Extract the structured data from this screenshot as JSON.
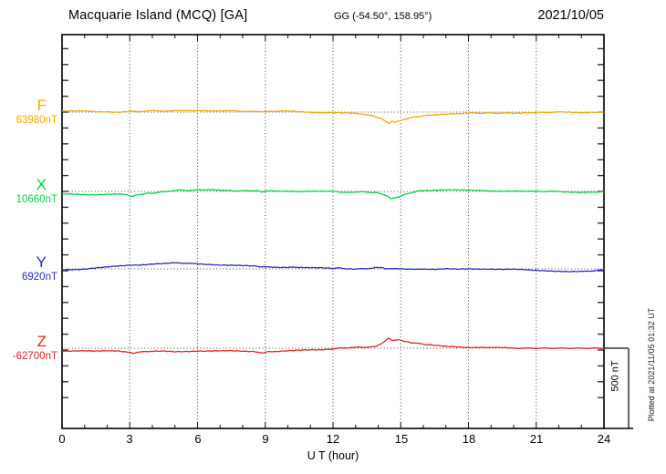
{
  "header": {
    "station_title": "Macquarie Island (MCQ)  [GA]",
    "gg_coords": "GG (-54.50°, 158.95°)",
    "date": "2021/10/05"
  },
  "plot": {
    "xaxis": {
      "label": "U T (hour)",
      "ticks": [
        "0",
        "3",
        "6",
        "9",
        "12",
        "15",
        "18",
        "21",
        "24"
      ]
    },
    "scale_bar": {
      "label": "500 nT"
    },
    "footnote": "Plotted at 2021/11/05 01:32 UT"
  },
  "chart_data": {
    "type": "line",
    "title": "Macquarie Island (MCQ) [GA] magnetogram",
    "date": "2021/10/05",
    "xlabel": "U T (hour)",
    "x_range": [
      0,
      24
    ],
    "x_gridlines_hours": [
      3,
      6,
      9,
      12,
      15,
      18,
      21
    ],
    "grid": "dotted-vertical-3h-and-dotted-baselines",
    "scale_bar_nT": 500,
    "minor_tick_nT": 100,
    "note": "points are [hour_UT, deviation_nT_from_baseline]",
    "series": [
      {
        "name": "F",
        "baseline_label": "63980nT",
        "baseline_nT": 63980,
        "color": "#F5A800",
        "points": [
          [
            0,
            6
          ],
          [
            0.5,
            6
          ],
          [
            1,
            6
          ],
          [
            1.5,
            3
          ],
          [
            2,
            3
          ],
          [
            2.5,
            0
          ],
          [
            3,
            6
          ],
          [
            3.3,
            3
          ],
          [
            4,
            9
          ],
          [
            4.5,
            6
          ],
          [
            5,
            11
          ],
          [
            5.5,
            11
          ],
          [
            6,
            9
          ],
          [
            6.5,
            6
          ],
          [
            7,
            6
          ],
          [
            7.5,
            9
          ],
          [
            8,
            6
          ],
          [
            8.5,
            6
          ],
          [
            8.9,
            0
          ],
          [
            9.2,
            6
          ],
          [
            9.6,
            6
          ],
          [
            10,
            6
          ],
          [
            10.5,
            3
          ],
          [
            11,
            0
          ],
          [
            11.5,
            -3
          ],
          [
            12,
            -3
          ],
          [
            12.5,
            -6
          ],
          [
            13,
            -9
          ],
          [
            13.5,
            -17
          ],
          [
            13.8,
            -23
          ],
          [
            14,
            -34
          ],
          [
            14.2,
            -46
          ],
          [
            14.35,
            -60
          ],
          [
            14.5,
            -69
          ],
          [
            14.6,
            -55
          ],
          [
            14.75,
            -63
          ],
          [
            14.9,
            -57
          ],
          [
            15,
            -52
          ],
          [
            15.2,
            -43
          ],
          [
            15.5,
            -34
          ],
          [
            15.8,
            -26
          ],
          [
            16,
            -23
          ],
          [
            16.5,
            -17
          ],
          [
            17,
            -11
          ],
          [
            17.5,
            -9
          ],
          [
            18,
            -6
          ],
          [
            19,
            -6
          ],
          [
            20,
            -6
          ],
          [
            20.5,
            -3
          ],
          [
            21,
            -3
          ],
          [
            22,
            0
          ],
          [
            22.5,
            0
          ],
          [
            23,
            -3
          ],
          [
            23.5,
            0
          ],
          [
            24,
            0
          ]
        ]
      },
      {
        "name": "X",
        "baseline_label": "10660nT",
        "baseline_nT": 10660,
        "color": "#00D545",
        "points": [
          [
            0,
            -17
          ],
          [
            0.5,
            -17
          ],
          [
            1,
            -20
          ],
          [
            1.5,
            -20
          ],
          [
            2,
            -17
          ],
          [
            2.5,
            -17
          ],
          [
            2.9,
            -23
          ],
          [
            3.1,
            -32
          ],
          [
            3.4,
            -20
          ],
          [
            3.7,
            -14
          ],
          [
            4,
            -11
          ],
          [
            4.3,
            -6
          ],
          [
            4.6,
            0
          ],
          [
            5,
            6
          ],
          [
            5.3,
            9
          ],
          [
            5.6,
            6
          ],
          [
            6,
            9
          ],
          [
            6.3,
            11
          ],
          [
            6.6,
            9
          ],
          [
            7,
            9
          ],
          [
            7.3,
            6
          ],
          [
            7.6,
            3
          ],
          [
            8,
            6
          ],
          [
            8.3,
            3
          ],
          [
            8.6,
            6
          ],
          [
            8.85,
            -3
          ],
          [
            9.1,
            3
          ],
          [
            9.5,
            0
          ],
          [
            10,
            3
          ],
          [
            10.5,
            0
          ],
          [
            11,
            3
          ],
          [
            11.5,
            0
          ],
          [
            12,
            0
          ],
          [
            12.4,
            -6
          ],
          [
            12.6,
            -9
          ],
          [
            12.9,
            -3
          ],
          [
            13.3,
            -3
          ],
          [
            13.6,
            -6
          ],
          [
            14,
            -6
          ],
          [
            14.2,
            -17
          ],
          [
            14.4,
            -29
          ],
          [
            14.55,
            -46
          ],
          [
            14.7,
            -40
          ],
          [
            14.9,
            -37
          ],
          [
            15.1,
            -23
          ],
          [
            15.4,
            -11
          ],
          [
            15.7,
            0
          ],
          [
            16,
            6
          ],
          [
            16.5,
            9
          ],
          [
            17,
            11
          ],
          [
            17.5,
            9
          ],
          [
            18,
            6
          ],
          [
            18.5,
            6
          ],
          [
            19,
            3
          ],
          [
            19.5,
            3
          ],
          [
            20,
            3
          ],
          [
            20.5,
            0
          ],
          [
            21,
            0
          ],
          [
            22,
            0
          ],
          [
            22.5,
            -3
          ],
          [
            23,
            -6
          ],
          [
            23.4,
            -6
          ],
          [
            23.7,
            -3
          ],
          [
            24,
            -3
          ]
        ]
      },
      {
        "name": "Y",
        "baseline_label": "6920nT",
        "baseline_nT": 6920,
        "color": "#2A2ACC",
        "points": [
          [
            0,
            -6
          ],
          [
            0.5,
            -3
          ],
          [
            1,
            0
          ],
          [
            1.5,
            6
          ],
          [
            2,
            11
          ],
          [
            2.5,
            17
          ],
          [
            3,
            23
          ],
          [
            3.5,
            26
          ],
          [
            4,
            32
          ],
          [
            4.5,
            34
          ],
          [
            5,
            37
          ],
          [
            5.3,
            37
          ],
          [
            5.6,
            34
          ],
          [
            6,
            32
          ],
          [
            6.5,
            29
          ],
          [
            7,
            26
          ],
          [
            7.5,
            23
          ],
          [
            8,
            20
          ],
          [
            8.5,
            17
          ],
          [
            8.85,
            11
          ],
          [
            9,
            14
          ],
          [
            9.5,
            11
          ],
          [
            10,
            11
          ],
          [
            10.3,
            9
          ],
          [
            10.6,
            11
          ],
          [
            11,
            6
          ],
          [
            11.5,
            6
          ],
          [
            12,
            3
          ],
          [
            12.2,
            6
          ],
          [
            12.5,
            3
          ],
          [
            13,
            0
          ],
          [
            13.3,
            0
          ],
          [
            13.6,
            3
          ],
          [
            13.85,
            9
          ],
          [
            14.1,
            9
          ],
          [
            14.3,
            3
          ],
          [
            14.6,
            0
          ],
          [
            15,
            0
          ],
          [
            15.5,
            0
          ],
          [
            16,
            0
          ],
          [
            16.5,
            -3
          ],
          [
            17,
            0
          ],
          [
            17.5,
            -3
          ],
          [
            18,
            0
          ],
          [
            18.5,
            0
          ],
          [
            19,
            0
          ],
          [
            19.5,
            -3
          ],
          [
            20,
            -3
          ],
          [
            20.5,
            -6
          ],
          [
            21,
            -9
          ],
          [
            21.5,
            -11
          ],
          [
            22,
            -14
          ],
          [
            22.5,
            -17
          ],
          [
            23,
            -17
          ],
          [
            23.4,
            -14
          ],
          [
            23.7,
            -9
          ],
          [
            24,
            -6
          ]
        ]
      },
      {
        "name": "Z",
        "baseline_label": "-62700nT",
        "baseline_nT": -62700,
        "color": "#E82222",
        "points": [
          [
            0,
            -17
          ],
          [
            0.5,
            -17
          ],
          [
            1,
            -17
          ],
          [
            1.5,
            -20
          ],
          [
            2,
            -17
          ],
          [
            2.5,
            -17
          ],
          [
            2.9,
            -23
          ],
          [
            3.15,
            -32
          ],
          [
            3.4,
            -26
          ],
          [
            3.7,
            -20
          ],
          [
            4,
            -20
          ],
          [
            4.5,
            -20
          ],
          [
            5,
            -23
          ],
          [
            5.5,
            -20
          ],
          [
            6,
            -17
          ],
          [
            6.5,
            -17
          ],
          [
            7,
            -17
          ],
          [
            7.5,
            -17
          ],
          [
            8,
            -20
          ],
          [
            8.5,
            -20
          ],
          [
            8.9,
            -29
          ],
          [
            9.1,
            -20
          ],
          [
            9.5,
            -20
          ],
          [
            10,
            -17
          ],
          [
            10.5,
            -14
          ],
          [
            11,
            -11
          ],
          [
            11.5,
            -9
          ],
          [
            12,
            -3
          ],
          [
            12.3,
            0
          ],
          [
            12.6,
            3
          ],
          [
            13,
            6
          ],
          [
            13.3,
            6
          ],
          [
            13.6,
            6
          ],
          [
            13.9,
            11
          ],
          [
            14.1,
            23
          ],
          [
            14.3,
            46
          ],
          [
            14.45,
            63
          ],
          [
            14.6,
            49
          ],
          [
            14.75,
            52
          ],
          [
            14.9,
            55
          ],
          [
            15.1,
            46
          ],
          [
            15.3,
            40
          ],
          [
            15.5,
            34
          ],
          [
            15.8,
            29
          ],
          [
            16,
            23
          ],
          [
            16.5,
            17
          ],
          [
            17,
            11
          ],
          [
            17.5,
            9
          ],
          [
            18,
            6
          ],
          [
            18.5,
            6
          ],
          [
            19,
            3
          ],
          [
            19.5,
            3
          ],
          [
            20,
            0
          ],
          [
            21,
            0
          ],
          [
            22,
            0
          ],
          [
            23,
            0
          ],
          [
            24,
            0
          ]
        ]
      }
    ]
  }
}
